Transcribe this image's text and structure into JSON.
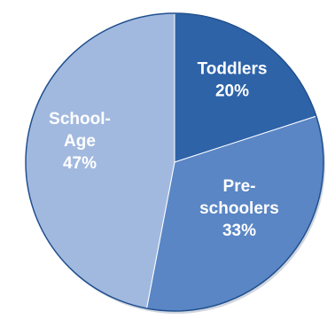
{
  "chart_data": {
    "type": "pie",
    "slices": [
      {
        "category": "Toddlers",
        "value": 20,
        "label_lines": [
          "Toddlers",
          "20%"
        ],
        "color": "#2E63A8"
      },
      {
        "category": "Preschoolers",
        "value": 33,
        "label_lines": [
          "Pre-",
          "schoolers",
          "33%"
        ],
        "color": "#5A86C5"
      },
      {
        "category": "School-Age",
        "value": 47,
        "label_lines": [
          "School-",
          "Age",
          "47%"
        ],
        "color": "#A2B9DF"
      }
    ],
    "colors": {
      "border": "#1F4F8E",
      "edge_shadow": "#244E86"
    }
  }
}
